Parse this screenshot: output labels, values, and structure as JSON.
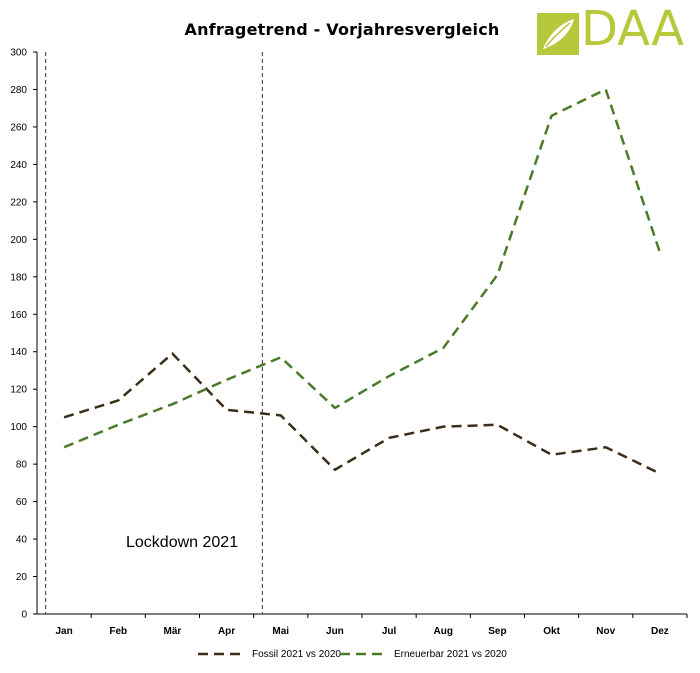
{
  "header": {
    "title": "Anfragetrend - Vorjahresvergleich"
  },
  "logo": {
    "text": "DAA",
    "color": "#b7c93b"
  },
  "chart_data": {
    "type": "line",
    "title": "Anfragetrend - Vorjahresvergleich",
    "xlabel": "",
    "ylabel": "",
    "categories": [
      "Jan",
      "Feb",
      "Mär",
      "Apr",
      "Mai",
      "Jun",
      "Jul",
      "Aug",
      "Sep",
      "Okt",
      "Nov",
      "Dez"
    ],
    "ylim": [
      0,
      300
    ],
    "yticks": [
      0,
      20,
      40,
      60,
      80,
      100,
      120,
      140,
      160,
      180,
      200,
      220,
      240,
      260,
      280,
      300
    ],
    "grid": false,
    "legend_position": "bottom",
    "series": [
      {
        "name": "Fossil 2021 vs 2020",
        "color": "#3b2f1a",
        "values": [
          105,
          114,
          139,
          109,
          106,
          77,
          94,
          100,
          101,
          85,
          89,
          75
        ]
      },
      {
        "name": "Erneuerbar 2021 vs 2020",
        "color": "#4b7a2a",
        "values": [
          89,
          101,
          112,
          125,
          137,
          110,
          127,
          142,
          181,
          266,
          280,
          193
        ]
      }
    ],
    "annotations": [
      {
        "text": "Lockdown 2021",
        "from": "Jan",
        "to": "Mai"
      }
    ]
  }
}
